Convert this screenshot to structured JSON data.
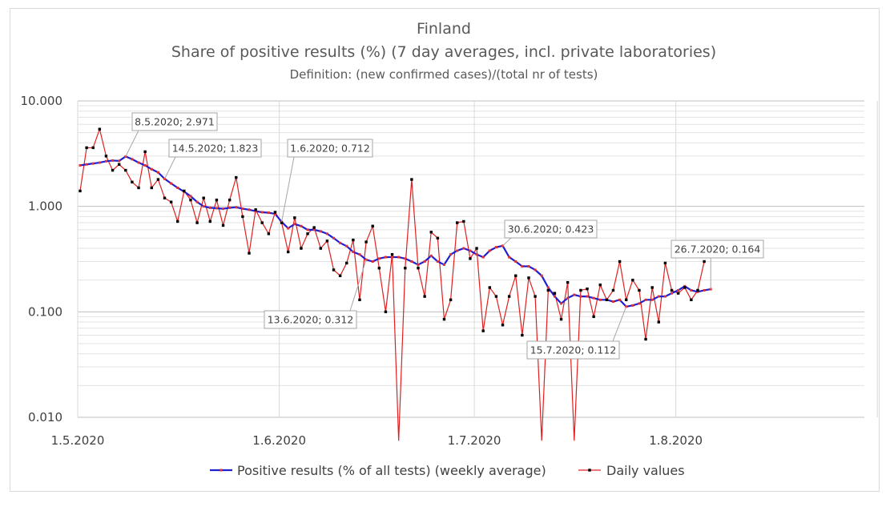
{
  "chart_data": {
    "type": "line",
    "title": "Finland",
    "subtitle": "Share of positive results (%) (7 day averages, incl. private laboratories)",
    "definition": "Definition: (new confirmed cases)/(total nr of tests)",
    "y_scale": "log",
    "ylim": [
      0.01,
      10
    ],
    "y_ticks": [
      "10.000",
      "1.000",
      "0.100",
      "0.010"
    ],
    "y_tick_values": [
      10,
      1,
      0.1,
      0.01
    ],
    "xlim": [
      "1.5.2020",
      "30.8.2020"
    ],
    "x_ticks": [
      "1.5.2020",
      "1.6.2020",
      "1.7.2020",
      "1.8.2020"
    ],
    "grid": true,
    "legend_position": "bottom",
    "start_date": "1.5.2020",
    "series": [
      {
        "name": "Positive results (% of all tests) (weekly average)",
        "color": "#1f1fd2",
        "marker_color": "#e03030",
        "values": [
          2.45,
          2.5,
          2.55,
          2.6,
          2.68,
          2.72,
          2.7,
          2.971,
          2.8,
          2.6,
          2.45,
          2.25,
          2.1,
          1.823,
          1.65,
          1.5,
          1.38,
          1.25,
          1.1,
          1.0,
          0.97,
          0.96,
          0.95,
          0.97,
          0.98,
          0.95,
          0.93,
          0.9,
          0.88,
          0.87,
          0.85,
          0.712,
          0.62,
          0.68,
          0.65,
          0.6,
          0.6,
          0.58,
          0.55,
          0.5,
          0.45,
          0.42,
          0.37,
          0.35,
          0.312,
          0.3,
          0.32,
          0.33,
          0.33,
          0.33,
          0.32,
          0.3,
          0.28,
          0.3,
          0.34,
          0.3,
          0.28,
          0.35,
          0.38,
          0.4,
          0.38,
          0.35,
          0.33,
          0.38,
          0.41,
          0.423,
          0.33,
          0.3,
          0.27,
          0.27,
          0.25,
          0.22,
          0.17,
          0.14,
          0.12,
          0.135,
          0.145,
          0.14,
          0.14,
          0.135,
          0.13,
          0.13,
          0.125,
          0.13,
          0.112,
          0.115,
          0.12,
          0.13,
          0.13,
          0.14,
          0.14,
          0.15,
          0.16,
          0.175,
          0.16,
          0.155,
          0.16,
          0.164
        ]
      },
      {
        "name": "Daily values",
        "color": "#e02020",
        "marker_color": "#000000",
        "values": [
          1.4,
          3.6,
          3.6,
          5.4,
          3.0,
          2.2,
          2.5,
          2.2,
          1.7,
          1.5,
          3.3,
          1.5,
          1.8,
          1.2,
          1.1,
          0.72,
          1.4,
          1.15,
          0.7,
          1.2,
          0.72,
          1.15,
          0.66,
          1.15,
          1.88,
          0.8,
          0.36,
          0.93,
          0.7,
          0.55,
          0.88,
          0.7,
          0.37,
          0.78,
          0.4,
          0.55,
          0.63,
          0.4,
          0.47,
          0.25,
          0.22,
          0.29,
          0.48,
          0.13,
          0.46,
          0.65,
          0.26,
          0.1,
          0.35,
          0.004,
          0.26,
          1.8,
          0.26,
          0.14,
          0.57,
          0.5,
          0.085,
          0.13,
          0.7,
          0.72,
          0.32,
          0.4,
          0.066,
          0.17,
          0.14,
          0.075,
          0.14,
          0.22,
          0.06,
          0.21,
          0.14,
          0.004,
          0.16,
          0.15,
          0.085,
          0.19,
          0.004,
          0.16,
          0.165,
          0.09,
          0.18,
          0.13,
          0.16,
          0.3,
          0.13,
          0.2,
          0.16,
          0.055,
          0.17,
          0.08,
          0.29,
          0.16,
          0.15,
          0.17,
          0.13,
          0.16,
          0.3
        ]
      }
    ],
    "annotations": [
      {
        "label": "8.5.2020; 2.971"
      },
      {
        "label": "14.5.2020; 1.823"
      },
      {
        "label": "1.6.2020; 0.712"
      },
      {
        "label": "13.6.2020; 0.312"
      },
      {
        "label": "30.6.2020; 0.423"
      },
      {
        "label": "15.7.2020; 0.112"
      },
      {
        "label": "26.7.2020; 0.164"
      }
    ]
  }
}
